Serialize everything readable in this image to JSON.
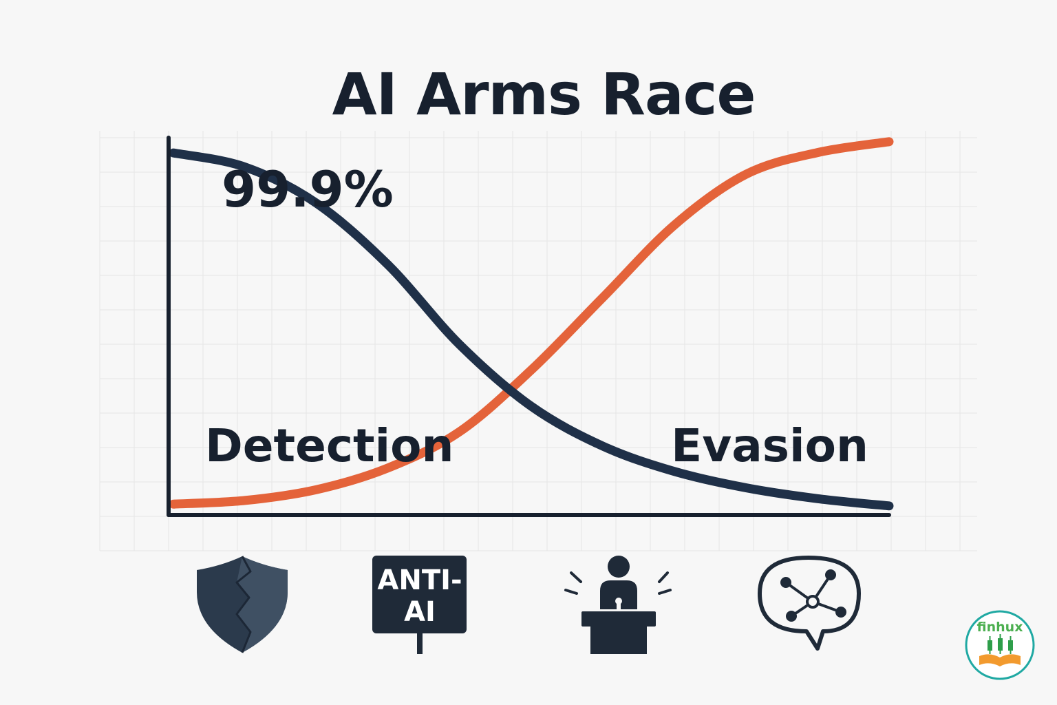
{
  "chart_data": {
    "type": "line",
    "title": "AI Arms Race",
    "annotation": "99.9%",
    "series": [
      {
        "name": "Detection",
        "color": "#1f3048",
        "x": [
          0,
          0.1,
          0.2,
          0.3,
          0.4,
          0.5,
          0.6,
          0.7,
          0.8,
          0.9,
          1.0
        ],
        "y": [
          0.999,
          0.96,
          0.86,
          0.69,
          0.47,
          0.3,
          0.19,
          0.12,
          0.075,
          0.045,
          0.025
        ]
      },
      {
        "name": "Evasion",
        "color": "#e4633a",
        "x": [
          0,
          0.1,
          0.2,
          0.3,
          0.4,
          0.5,
          0.6,
          0.7,
          0.8,
          0.9,
          1.0
        ],
        "y": [
          0.03,
          0.04,
          0.07,
          0.13,
          0.23,
          0.4,
          0.6,
          0.8,
          0.94,
          1.0,
          1.03
        ]
      }
    ],
    "xlim": [
      0,
      1
    ],
    "ylim": [
      0,
      1.06
    ],
    "grid": true
  },
  "icons": [
    {
      "name": "shield-icon"
    },
    {
      "name": "anti-ai-sign-icon",
      "text_line1": "ANTI-",
      "text_line2": "AI"
    },
    {
      "name": "speaker-podium-icon"
    },
    {
      "name": "network-chat-icon"
    }
  ],
  "logo": {
    "text": "finhux"
  },
  "colors": {
    "navy": "#1f3048",
    "orange": "#e4633a",
    "background": "#f7f7f7"
  }
}
